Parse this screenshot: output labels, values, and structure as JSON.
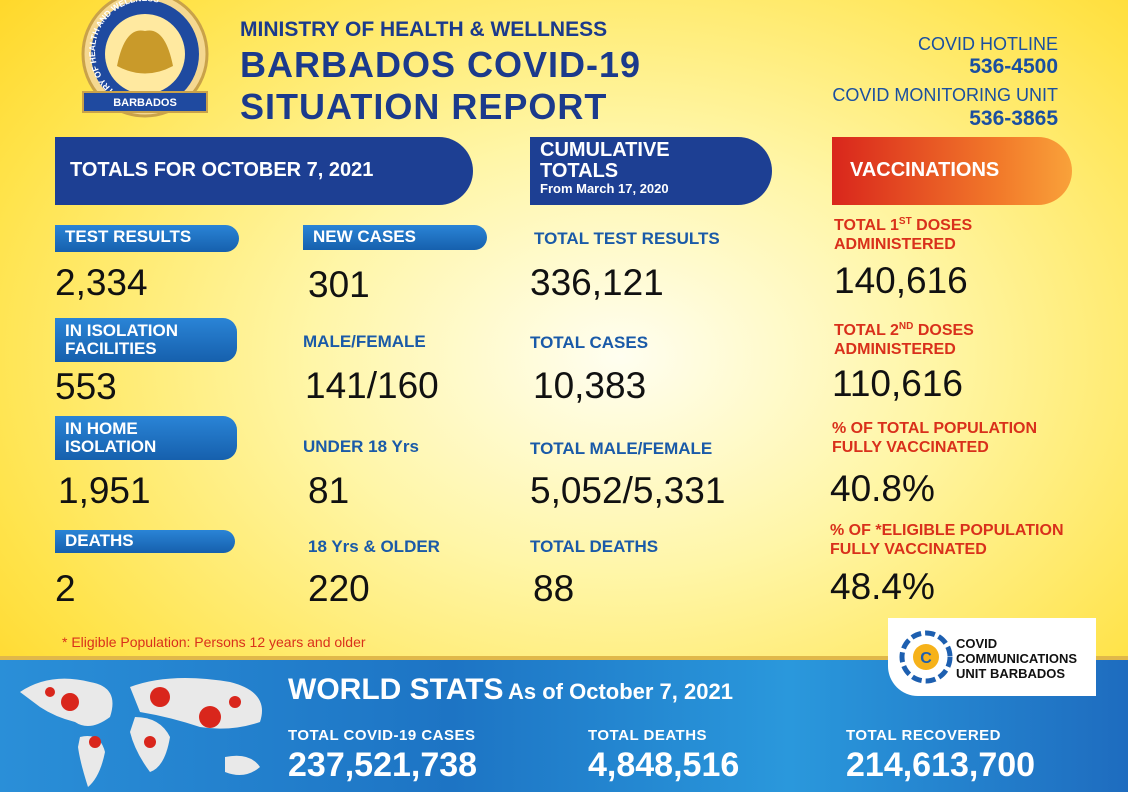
{
  "logo": {
    "ring_text": "MINISTRY OF HEALTH AND WELLNESS",
    "banner": "BARBADOS"
  },
  "header": {
    "ministry": "MINISTRY OF HEALTH & WELLNESS",
    "title_lines": [
      "BARBADOS COVID-19",
      "SITUATION REPORT"
    ],
    "hotline_label": "COVID HOTLINE",
    "hotline": "536-4500",
    "monitoring_label": "COVID MONITORING UNIT",
    "monitoring": "536-3865"
  },
  "banners": {
    "daily": "TOTALS FOR OCTOBER 7, 2021",
    "cumulative": [
      "CUMULATIVE",
      "TOTALS"
    ],
    "cumulative_since": "From March 17, 2020",
    "vaccinations": "VACCINATIONS"
  },
  "daily": [
    {
      "label": [
        "TEST RESULTS"
      ],
      "value": "2,334"
    },
    {
      "label": [
        "IN ISOLATION",
        "FACILITIES"
      ],
      "value": "553"
    },
    {
      "label": [
        "IN HOME",
        "ISOLATION"
      ],
      "value": "1,951"
    },
    {
      "label": [
        "DEATHS"
      ],
      "value": "2"
    }
  ],
  "cases": [
    {
      "label": "NEW CASES",
      "value": "301"
    },
    {
      "label": "MALE/FEMALE",
      "value": "141/160"
    },
    {
      "label": "UNDER 18 Yrs",
      "value": "81"
    },
    {
      "label": "18 Yrs & OLDER",
      "value": "220"
    }
  ],
  "cumulative": [
    {
      "label": "TOTAL TEST RESULTS",
      "value": "336,121"
    },
    {
      "label": "TOTAL CASES",
      "value": "10,383"
    },
    {
      "label": "TOTAL MALE/FEMALE",
      "value": "5,052/5,331"
    },
    {
      "label": "TOTAL DEATHS",
      "value": "88"
    }
  ],
  "vaccinations": [
    {
      "label": [
        "TOTAL 1",
        "ST",
        "DOSES",
        "ADMINISTERED"
      ],
      "value": "140,616"
    },
    {
      "label": [
        "TOTAL 2",
        "ND",
        "DOSES",
        "ADMINISTERED"
      ],
      "value": "110,616"
    },
    {
      "label": [
        "% OF TOTAL POPULATION",
        "FULLY VACCINATED"
      ],
      "value": "40.8%"
    },
    {
      "label": [
        "% OF *ELIGIBLE POPULATION",
        "FULLY VACCINATED"
      ],
      "value": "48.4%"
    }
  ],
  "footnote": "* Eligible Population: Persons 12 years and older",
  "comms_logo": [
    "COVID",
    "COMMUNICATIONS",
    "UNIT BARBADOS"
  ],
  "world": {
    "title": "WORLD STATS",
    "as_of": "As of October 7, 2021",
    "stats": [
      {
        "label": "TOTAL  COVID-19  CASES",
        "value": "237,521,738"
      },
      {
        "label": "TOTAL  DEATHS",
        "value": "4,848,516"
      },
      {
        "label": "TOTAL  RECOVERED",
        "value": "214,613,700"
      }
    ]
  }
}
